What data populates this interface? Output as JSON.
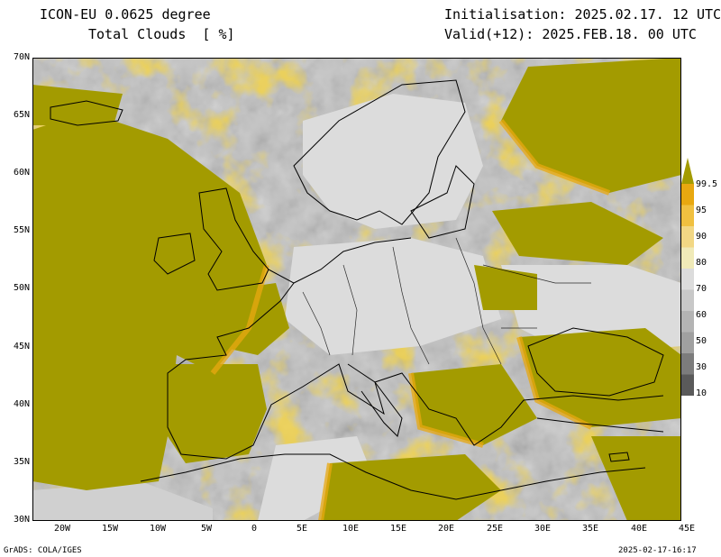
{
  "header": {
    "model": "ICON-EU 0.0625 degree",
    "field": "Total Clouds  [ %]",
    "init": "Initialisation: 2025.02.17. 12 UTC",
    "valid": "Valid(+12): 2025.FEB.18. 00 UTC"
  },
  "axes": {
    "lat_labels": [
      "70N",
      "65N",
      "60N",
      "55N",
      "50N",
      "45N",
      "40N",
      "35N",
      "30N"
    ],
    "lon_labels": [
      "20W",
      "15W",
      "10W",
      "5W",
      "0",
      "5E",
      "10E",
      "15E",
      "20E",
      "25E",
      "30E",
      "35E",
      "40E",
      "45E"
    ]
  },
  "colorbar": {
    "labels": [
      "99.5",
      "95",
      "90",
      "80",
      "70",
      "60",
      "50",
      "30",
      "10"
    ],
    "colors": [
      "#a39b00",
      "#e8a810",
      "#f0c040",
      "#f2d784",
      "#f0eab8",
      "#dcdcdc",
      "#c8c8c8",
      "#b4b4b4",
      "#a0a0a0",
      "#7c7c7c",
      "#5a5a5a"
    ]
  },
  "colors": {
    "overcast": "#a39b00",
    "land_clear": "#dcdcdc",
    "coast": "#000000"
  },
  "footer": {
    "left": "GrADS: COLA/IGES",
    "right": "2025-02-17-16:17"
  }
}
